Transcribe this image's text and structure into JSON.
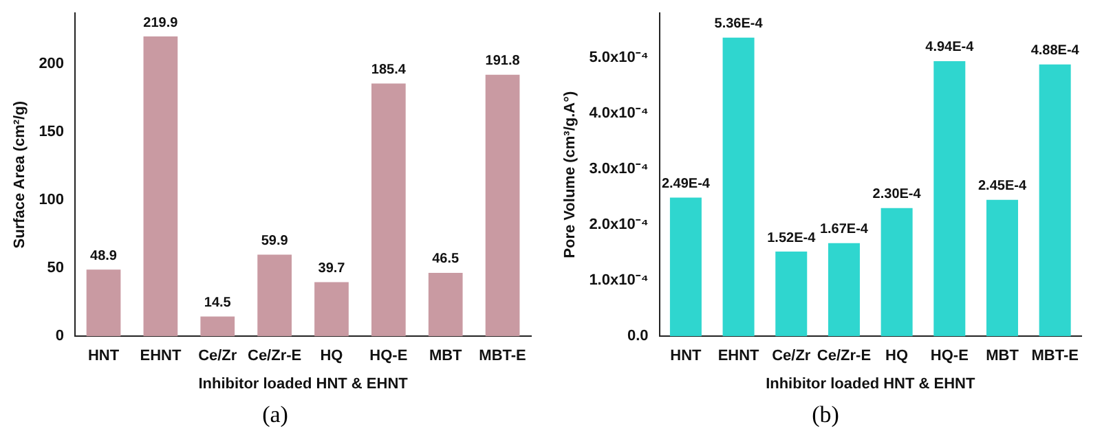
{
  "chart_data": [
    {
      "type": "bar",
      "xlabel": "Inhibitor loaded HNT & EHNT",
      "ylabel": "Surface Area (cm²/g)",
      "categories": [
        "HNT",
        "EHNT",
        "Ce/Zr",
        "Ce/Zr-E",
        "HQ",
        "HQ-E",
        "MBT",
        "MBT-E"
      ],
      "values": [
        48.9,
        219.9,
        14.5,
        59.9,
        39.7,
        185.4,
        46.5,
        191.8
      ],
      "color": "#c99aa2",
      "ylim": [
        0,
        237
      ],
      "yticks": [
        0,
        50,
        100,
        150,
        200
      ],
      "grid": false,
      "legend": false,
      "data_labels": true,
      "annotations": [
        "(a)"
      ]
    },
    {
      "type": "bar",
      "xlabel": "Inhibitor loaded HNT & EHNT",
      "ylabel": "Pore Volume (cm³/g.A°)",
      "categories": [
        "HNT",
        "EHNT",
        "Ce/Zr",
        "Ce/Zr-E",
        "HQ",
        "HQ-E",
        "MBT",
        "MBT-E"
      ],
      "values": [
        0.000249,
        0.000536,
        0.000152,
        0.000167,
        0.00023,
        0.000494,
        0.000245,
        0.000488
      ],
      "color": "#2fd6cf",
      "value_labels": [
        "2.49E-4",
        "5.36E-4",
        "1.52E-4",
        "1.67E-4",
        "2.30E-4",
        "4.94E-4",
        "2.45E-4",
        "4.88E-4"
      ],
      "ylim": [
        0,
        0.00058
      ],
      "yticks": [
        {
          "value": 0,
          "label": "0.0"
        },
        {
          "value": 0.0001,
          "label": "1.0x10⁻⁴"
        },
        {
          "value": 0.0002,
          "label": "2.0x10⁻⁴"
        },
        {
          "value": 0.0003,
          "label": "3.0x10⁻⁴"
        },
        {
          "value": 0.0004,
          "label": "4.0x10⁻⁴"
        },
        {
          "value": 0.0005,
          "label": "5.0x10⁻⁴"
        }
      ],
      "grid": false,
      "legend": false,
      "annotations": [
        "(b)"
      ]
    }
  ]
}
